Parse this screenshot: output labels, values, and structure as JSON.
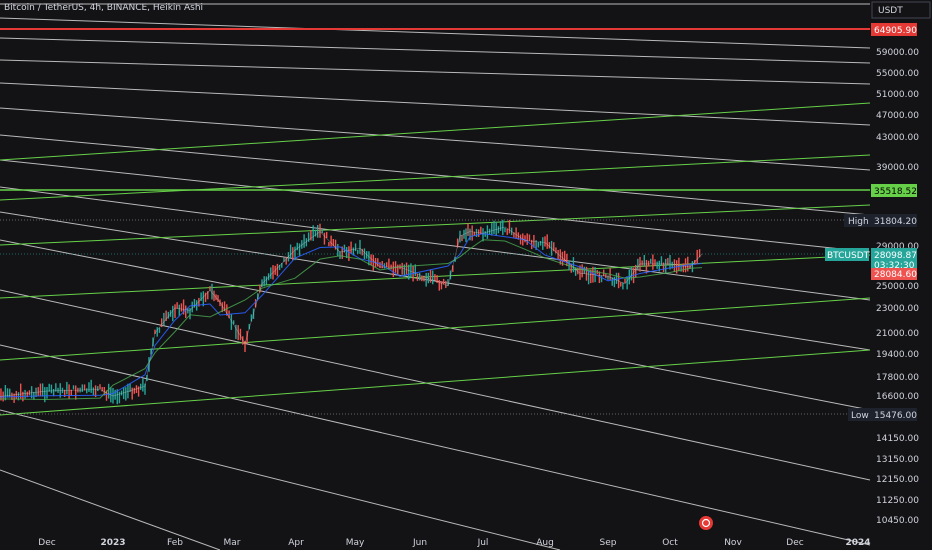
{
  "header": {
    "title": "Bitcoin / TetherUS, 4h, BINANCE, Heikin Ashi",
    "currency": "USDT"
  },
  "colors": {
    "background": "#131316",
    "red_line": "#e53935",
    "green_line": "#66d148",
    "white_line": "#e6e6e6",
    "candle_up": "#26a69a",
    "candle_down": "#ef5350",
    "ma_blue": "#2962ff",
    "ma_teal": "#4caf50"
  },
  "price_axis": {
    "labels": [
      "59000.00",
      "55000.00",
      "51000.00",
      "47000.00",
      "43000.00",
      "39000.00",
      "29000.00",
      "25000.00",
      "23000.00",
      "21000.00",
      "19400.00",
      "17800.00",
      "16600.00",
      "14150.00",
      "13150.00",
      "12150.00",
      "11250.00",
      "10450.00"
    ]
  },
  "tags": {
    "red_level": "64905.90",
    "green_level": "35518.52",
    "high_label": "High",
    "high_value": "31804.20",
    "symbol": "BTCUSDT",
    "last_price": "28098.87",
    "countdown": "03:32:30",
    "open_price": "28084.60",
    "low_label": "Low",
    "low_value": "15476.00"
  },
  "time_axis": {
    "labels": [
      "Dec",
      "2023",
      "Feb",
      "Mar",
      "Apr",
      "May",
      "Jun",
      "Jul",
      "Aug",
      "Sep",
      "Oct",
      "Nov",
      "Dec",
      "2024"
    ]
  },
  "chart_data": {
    "type": "line",
    "symbol": "BTCUSDT",
    "x": [
      "Nov 23",
      "Dec 1",
      "Dec 15",
      "Jan 1",
      "Jan 10",
      "Jan 20",
      "Jan 31",
      "Feb 10",
      "Feb 16",
      "Feb 25",
      "Mar 10",
      "Mar 17",
      "Apr 1",
      "Apr 14",
      "Apr 25",
      "May 5",
      "May 15",
      "May 25",
      "Jun 10",
      "Jun 15",
      "Jun 22",
      "Jul 1",
      "Jul 14",
      "Jul 24",
      "Aug 10",
      "Aug 17",
      "Sep 1",
      "Sep 11",
      "Sep 20",
      "Oct 1",
      "Oct 10",
      "Oct 16"
    ],
    "y": [
      16500,
      16900,
      17000,
      16600,
      17200,
      21000,
      23000,
      22800,
      24600,
      23500,
      20200,
      25200,
      28500,
      30500,
      28300,
      28700,
      26800,
      26800,
      25000,
      30000,
      30500,
      30300,
      31000,
      29500,
      29300,
      26200,
      25900,
      25200,
      27100,
      27100,
      26800,
      28098.87
    ],
    "y_axis_scale": "log",
    "ylim": [
      10000,
      70000
    ],
    "horizontal_levels": [
      {
        "value": 64905.9,
        "color": "red"
      },
      {
        "value": 35518.52,
        "color": "green"
      },
      {
        "value": 31804.2,
        "label": "High"
      },
      {
        "value": 15476.0,
        "label": "Low"
      }
    ],
    "last_price": 28098.87
  }
}
